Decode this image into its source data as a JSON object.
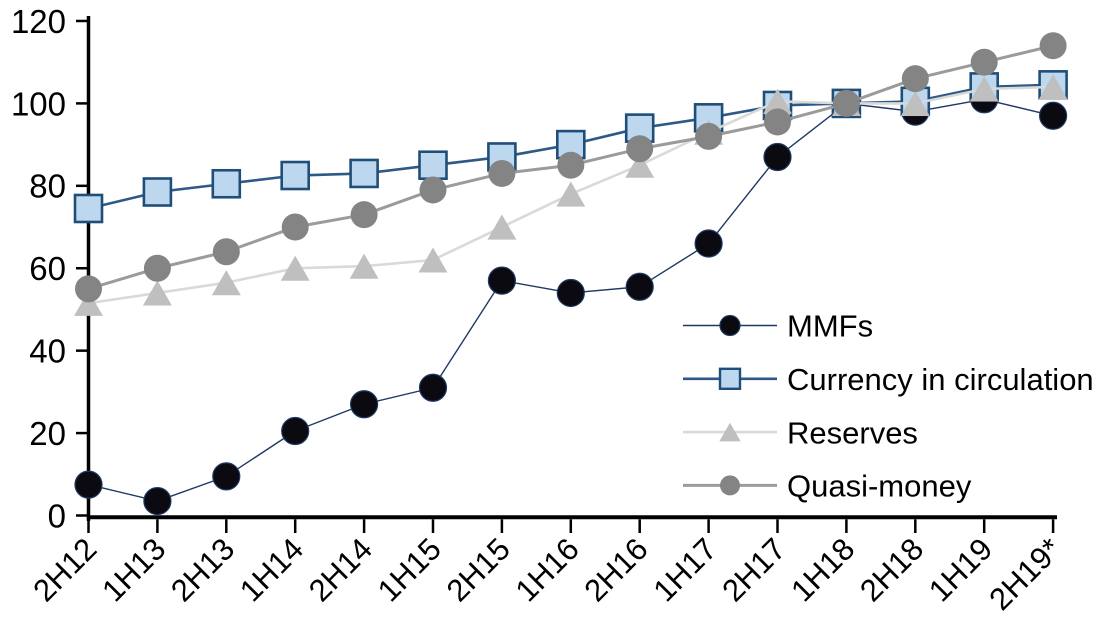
{
  "page": {
    "background": "#ffffff"
  },
  "chart_data": {
    "type": "line",
    "title": "",
    "xlabel": "",
    "ylabel": "",
    "grid": false,
    "legend_position": "inside-right",
    "x_label_rotation_deg": 45,
    "axis_color": "#000000",
    "ylim": [
      0,
      120
    ],
    "ytick_step": 20,
    "categories": [
      "2H12",
      "1H13",
      "2H13",
      "1H14",
      "2H14",
      "1H15",
      "2H15",
      "1H16",
      "2H16",
      "1H17",
      "2H17",
      "1H18",
      "2H18",
      "1H19",
      "2H19*"
    ],
    "series": [
      {
        "name": "MMFs",
        "marker": "circle",
        "marker_fill": "#0a0a10",
        "marker_stroke": "#1f3864",
        "line_color": "#1f3864",
        "line_width": 1.4,
        "values": [
          7.5,
          3.5,
          9.5,
          20.5,
          27,
          31,
          57,
          54,
          55.5,
          66,
          87,
          100,
          98,
          101,
          97
        ]
      },
      {
        "name": "Currency in circulation",
        "marker": "square",
        "marker_fill": "#bdd7ee",
        "marker_stroke": "#1f4e79",
        "line_color": "#2d5986",
        "line_width": 2.6,
        "values": [
          74.5,
          78.5,
          80.5,
          82.5,
          83,
          85,
          87,
          90,
          94,
          96.5,
          99.5,
          100,
          100.5,
          104,
          104.5
        ]
      },
      {
        "name": "Reserves",
        "marker": "triangle",
        "marker_fill": "#bfbfbf",
        "marker_stroke": "none",
        "line_color": "#d9d9d9",
        "line_width": 2.6,
        "values": [
          51.5,
          54,
          56.5,
          60,
          60.5,
          62,
          70,
          78,
          85,
          93,
          100.5,
          100,
          100,
          103.5,
          104
        ]
      },
      {
        "name": "Quasi-money",
        "marker": "circle",
        "marker_fill": "#848484",
        "marker_stroke": "none",
        "line_color": "#9b9b9b",
        "line_width": 3,
        "values": [
          55,
          60,
          64,
          70,
          73,
          79,
          83,
          85,
          89,
          92,
          95.5,
          100,
          106,
          110,
          114
        ]
      }
    ]
  }
}
